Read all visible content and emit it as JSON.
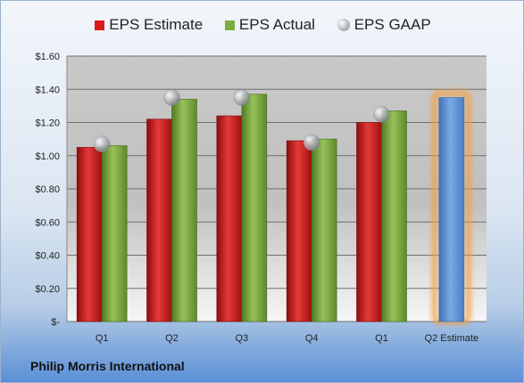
{
  "chart_data": {
    "type": "bar",
    "title": "",
    "categories": [
      "Q1",
      "Q2",
      "Q3",
      "Q4",
      "Q1",
      "Q2 Estimate"
    ],
    "series": [
      {
        "name": "EPS Estimate",
        "color": "#d81b1b",
        "values": [
          1.05,
          1.22,
          1.24,
          1.09,
          1.2,
          null
        ]
      },
      {
        "name": "EPS Actual",
        "color": "#7cac3b",
        "values": [
          1.06,
          1.34,
          1.37,
          1.1,
          1.27,
          null
        ]
      },
      {
        "name": "EPS GAAP",
        "color": "#b9bcc0",
        "marker": "sphere",
        "values": [
          1.07,
          1.35,
          1.35,
          1.08,
          1.25,
          null
        ]
      }
    ],
    "highlight": {
      "category": "Q2 Estimate",
      "value": 1.35,
      "color": "#5b93d6",
      "glow": "#f3a040"
    },
    "ylim": [
      0,
      1.6
    ],
    "yticks": [
      0,
      0.2,
      0.4,
      0.6,
      0.8,
      1.0,
      1.2,
      1.4,
      1.6
    ],
    "ytick_labels": [
      "$-",
      "$0.20",
      "$0.40",
      "$0.60",
      "$0.80",
      "$1.00",
      "$1.20",
      "$1.40",
      "$1.60"
    ],
    "grid": true,
    "legend_position": "top"
  },
  "legend": {
    "estimate_label": "EPS Estimate",
    "actual_label": "EPS Actual",
    "gaap_label": "EPS GAAP"
  },
  "footer": {
    "company": "Philip Morris International"
  }
}
